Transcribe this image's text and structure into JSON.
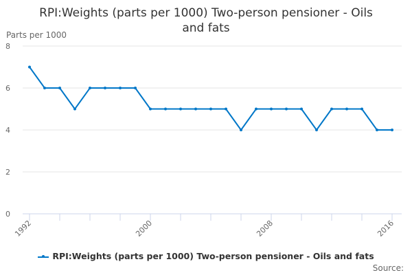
{
  "chart_data": {
    "type": "line",
    "title": "RPI:Weights (parts per 1000) Two-person pensioner - Oils and fats",
    "title_lines": [
      "RPI:Weights (parts per 1000) Two-person pensioner - Oils",
      "and fats"
    ],
    "ylabel": "Parts per 1000",
    "xlabel": "",
    "x": [
      1992,
      1993,
      1994,
      1995,
      1996,
      1997,
      1998,
      1999,
      2000,
      2001,
      2002,
      2003,
      2004,
      2005,
      2006,
      2007,
      2008,
      2009,
      2010,
      2011,
      2012,
      2013,
      2014,
      2015,
      2016
    ],
    "series": [
      {
        "name": "RPI:Weights (parts per 1000) Two-person pensioner - Oils and fats",
        "values": [
          7,
          6,
          6,
          5,
          6,
          6,
          6,
          6,
          5,
          5,
          5,
          5,
          5,
          5,
          4,
          5,
          5,
          5,
          5,
          4,
          5,
          5,
          5,
          4,
          4
        ],
        "color": "#0077c8"
      }
    ],
    "ylim": [
      0,
      8
    ],
    "yticks": [
      0,
      2,
      4,
      6,
      8
    ],
    "xtick_labels": [
      1992,
      2000,
      2008,
      2016
    ],
    "grid": true,
    "legend": "bottom-center"
  },
  "source_label": "Source:"
}
